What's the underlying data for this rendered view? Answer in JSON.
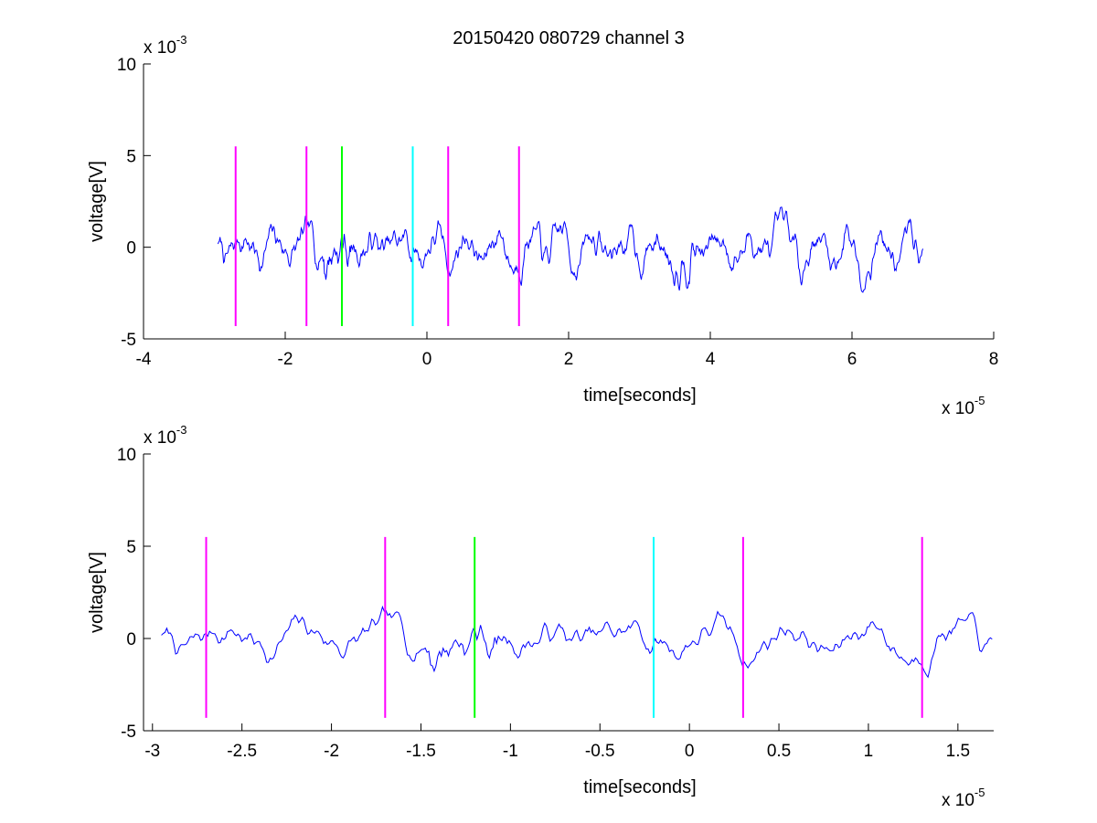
{
  "chart_data": [
    {
      "type": "line",
      "title": "20150420 080729 channel 3",
      "xlabel": "time[seconds]",
      "ylabel": "voltage[V]",
      "x_exponent_base": "x 10",
      "x_exponent": "-5",
      "y_exponent_base": "x 10",
      "y_exponent": "-3",
      "xlim": [
        -4,
        8
      ],
      "ylim": [
        -5,
        10
      ],
      "xticks": [
        "-4",
        "-2",
        "0",
        "2",
        "4",
        "6",
        "8"
      ],
      "xtick_values": [
        -4,
        -2,
        0,
        2,
        4,
        6,
        8
      ],
      "yticks": [
        "-5",
        "0",
        "5",
        "10"
      ],
      "ytick_values": [
        -5,
        0,
        5,
        10
      ],
      "series_color": "#0000ff",
      "signal": {
        "x_start": -2.95,
        "x_end": 7.0,
        "num_points": 1000,
        "amplitude_range": [
          -3.5,
          5.0
        ],
        "seed": 7
      },
      "markers": [
        {
          "x": -2.7,
          "y_from": -4.3,
          "y_to": 5.5,
          "color": "#ff00ff"
        },
        {
          "x": -1.7,
          "y_from": -4.3,
          "y_to": 5.5,
          "color": "#ff00ff"
        },
        {
          "x": -1.2,
          "y_from": -4.3,
          "y_to": 5.5,
          "color": "#00ff00"
        },
        {
          "x": -0.2,
          "y_from": -4.3,
          "y_to": 5.5,
          "color": "#00ffff"
        },
        {
          "x": 0.3,
          "y_from": -4.3,
          "y_to": 5.5,
          "color": "#ff00ff"
        },
        {
          "x": 1.3,
          "y_from": -4.3,
          "y_to": 5.5,
          "color": "#ff00ff"
        }
      ]
    },
    {
      "type": "line",
      "xlabel": "time[seconds]",
      "ylabel": "voltage[V]",
      "x_exponent_base": "x 10",
      "x_exponent": "-5",
      "y_exponent_base": "x 10",
      "y_exponent": "-3",
      "xlim": [
        -3.05,
        1.7
      ],
      "ylim": [
        -5,
        10
      ],
      "xticks": [
        "-3",
        "-2.5",
        "-2",
        "-1.5",
        "-1",
        "-0.5",
        "0",
        "0.5",
        "1",
        "1.5"
      ],
      "xtick_values": [
        -3,
        -2.5,
        -2,
        -1.5,
        -1,
        -0.5,
        0,
        0.5,
        1,
        1.5
      ],
      "yticks": [
        "-5",
        "0",
        "5",
        "10"
      ],
      "ytick_values": [
        -5,
        0,
        5,
        10
      ],
      "series_color": "#0000ff",
      "signal": {
        "x_start": -2.95,
        "x_end": 1.7,
        "num_points": 470,
        "amplitude_range": [
          -3.5,
          5.0
        ],
        "seed": 7
      },
      "markers": [
        {
          "x": -2.7,
          "y_from": -4.3,
          "y_to": 5.5,
          "color": "#ff00ff"
        },
        {
          "x": -1.7,
          "y_from": -4.3,
          "y_to": 5.5,
          "color": "#ff00ff"
        },
        {
          "x": -1.2,
          "y_from": -4.3,
          "y_to": 5.5,
          "color": "#00ff00"
        },
        {
          "x": -0.2,
          "y_from": -4.3,
          "y_to": 5.5,
          "color": "#00ffff"
        },
        {
          "x": 0.3,
          "y_from": -4.3,
          "y_to": 5.5,
          "color": "#ff00ff"
        },
        {
          "x": 1.3,
          "y_from": -4.3,
          "y_to": 5.5,
          "color": "#ff00ff"
        }
      ]
    }
  ]
}
